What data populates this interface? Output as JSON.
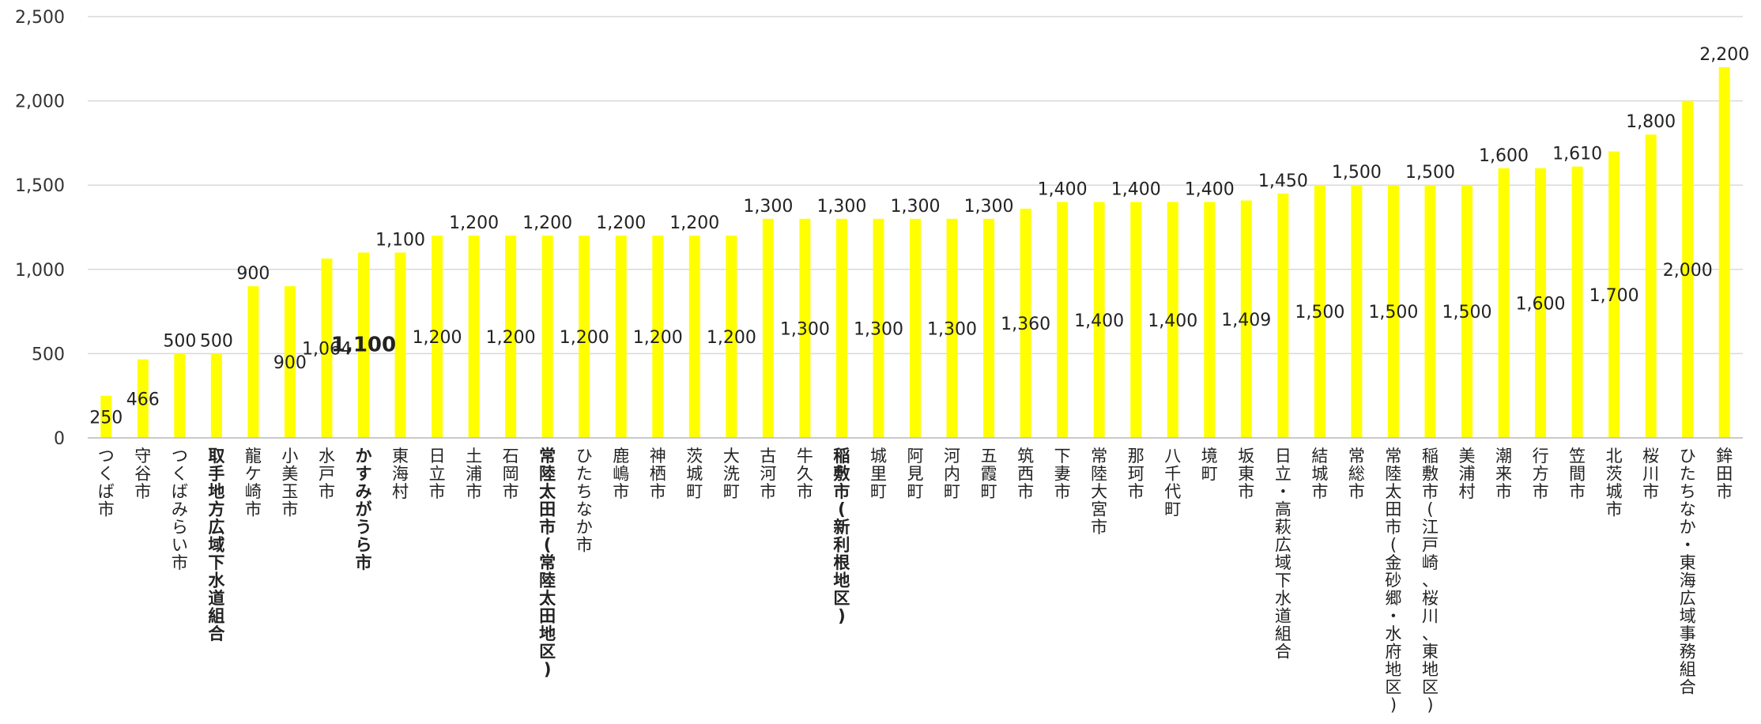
{
  "chart_data": {
    "type": "bar",
    "title": "",
    "xlabel": "",
    "ylabel": "",
    "ylim": [
      0,
      2500
    ],
    "yticks": [
      "0",
      "500",
      "1,000",
      "1,500",
      "2,000",
      "2,500"
    ],
    "grid": true,
    "bar_color": "#FFFF00",
    "categories": [
      {
        "name": "つくば市",
        "value": 250,
        "top_label": "",
        "inner_label": "250",
        "bold": false
      },
      {
        "name": "守谷市",
        "value": 466,
        "top_label": "",
        "inner_label": "466",
        "bold": false
      },
      {
        "name": "つくばみらい市",
        "value": 500,
        "top_label": "500",
        "inner_label": "",
        "bold": false
      },
      {
        "name": "取手地方広域下水道組合",
        "value": 500,
        "top_label": "500",
        "inner_label": "",
        "bold": true
      },
      {
        "name": "龍ケ崎市",
        "value": 900,
        "top_label": "900",
        "inner_label": "",
        "bold": false
      },
      {
        "name": "小美玉市",
        "value": 900,
        "top_label": "",
        "inner_label": "900",
        "bold": false
      },
      {
        "name": "水戸市",
        "value": 1064,
        "top_label": "",
        "inner_label": "1,064",
        "bold": false
      },
      {
        "name": "かすみがうら市",
        "value": 1100,
        "top_label": "",
        "inner_label": "1,100",
        "bold": true
      },
      {
        "name": "東海村",
        "value": 1100,
        "top_label": "1,100",
        "inner_label": "",
        "bold": false
      },
      {
        "name": "日立市",
        "value": 1200,
        "top_label": "",
        "inner_label": "1,200",
        "bold": false
      },
      {
        "name": "土浦市",
        "value": 1200,
        "top_label": "1,200",
        "inner_label": "",
        "bold": false
      },
      {
        "name": "石岡市",
        "value": 1200,
        "top_label": "",
        "inner_label": "1,200",
        "bold": false
      },
      {
        "name": "常陸太田市(常陸太田地区)",
        "value": 1200,
        "top_label": "1,200",
        "inner_label": "",
        "bold": true
      },
      {
        "name": "ひたちなか市",
        "value": 1200,
        "top_label": "",
        "inner_label": "1,200",
        "bold": false
      },
      {
        "name": "鹿嶋市",
        "value": 1200,
        "top_label": "1,200",
        "inner_label": "",
        "bold": false
      },
      {
        "name": "神栖市",
        "value": 1200,
        "top_label": "",
        "inner_label": "1,200",
        "bold": false
      },
      {
        "name": "茨城町",
        "value": 1200,
        "top_label": "1,200",
        "inner_label": "",
        "bold": false
      },
      {
        "name": "大洗町",
        "value": 1200,
        "top_label": "",
        "inner_label": "1,200",
        "bold": false
      },
      {
        "name": "古河市",
        "value": 1300,
        "top_label": "1,300",
        "inner_label": "",
        "bold": false
      },
      {
        "name": "牛久市",
        "value": 1300,
        "top_label": "",
        "inner_label": "1,300",
        "bold": false
      },
      {
        "name": "稲敷市(新利根地区)",
        "value": 1300,
        "top_label": "1,300",
        "inner_label": "",
        "bold": true
      },
      {
        "name": "城里町",
        "value": 1300,
        "top_label": "",
        "inner_label": "1,300",
        "bold": false
      },
      {
        "name": "阿見町",
        "value": 1300,
        "top_label": "1,300",
        "inner_label": "",
        "bold": false
      },
      {
        "name": "河内町",
        "value": 1300,
        "top_label": "",
        "inner_label": "1,300",
        "bold": false
      },
      {
        "name": "五霞町",
        "value": 1300,
        "top_label": "1,300",
        "inner_label": "",
        "bold": false
      },
      {
        "name": "筑西市",
        "value": 1360,
        "top_label": "",
        "inner_label": "1,360",
        "bold": false
      },
      {
        "name": "下妻市",
        "value": 1400,
        "top_label": "1,400",
        "inner_label": "",
        "bold": false
      },
      {
        "name": "常陸大宮市",
        "value": 1400,
        "top_label": "",
        "inner_label": "1,400",
        "bold": false
      },
      {
        "name": "那珂市",
        "value": 1400,
        "top_label": "1,400",
        "inner_label": "",
        "bold": false
      },
      {
        "name": "八千代町",
        "value": 1400,
        "top_label": "",
        "inner_label": "1,400",
        "bold": false
      },
      {
        "name": "境町",
        "value": 1400,
        "top_label": "1,400",
        "inner_label": "",
        "bold": false
      },
      {
        "name": "坂東市",
        "value": 1409,
        "top_label": "",
        "inner_label": "1,409",
        "bold": false
      },
      {
        "name": "日立・高萩広域下水道組合",
        "value": 1450,
        "top_label": "1,450",
        "inner_label": "",
        "bold": false
      },
      {
        "name": "結城市",
        "value": 1500,
        "top_label": "",
        "inner_label": "1,500",
        "bold": false
      },
      {
        "name": "常総市",
        "value": 1500,
        "top_label": "1,500",
        "inner_label": "",
        "bold": false
      },
      {
        "name": "常陸太田市(金砂郷・水府地区)",
        "value": 1500,
        "top_label": "",
        "inner_label": "1,500",
        "bold": false
      },
      {
        "name": "稲敷市(江戸崎、桜川、東地区)",
        "value": 1500,
        "top_label": "1,500",
        "inner_label": "",
        "bold": false
      },
      {
        "name": "美浦村",
        "value": 1500,
        "top_label": "",
        "inner_label": "1,500",
        "bold": false
      },
      {
        "name": "潮来市",
        "value": 1600,
        "top_label": "1,600",
        "inner_label": "",
        "bold": false
      },
      {
        "name": "行方市",
        "value": 1600,
        "top_label": "",
        "inner_label": "1,600",
        "bold": false
      },
      {
        "name": "笠間市",
        "value": 1610,
        "top_label": "1,610",
        "inner_label": "",
        "bold": false
      },
      {
        "name": "北茨城市",
        "value": 1700,
        "top_label": "",
        "inner_label": "1,700",
        "bold": false
      },
      {
        "name": "桜川市",
        "value": 1800,
        "top_label": "1,800",
        "inner_label": "",
        "bold": false
      },
      {
        "name": "ひたちなか・東海広域事務組合",
        "value": 2000,
        "top_label": "",
        "inner_label": "2,000",
        "bold": false
      },
      {
        "name": "鉾田市",
        "value": 2200,
        "top_label": "2,200",
        "inner_label": "",
        "bold": false
      }
    ]
  }
}
